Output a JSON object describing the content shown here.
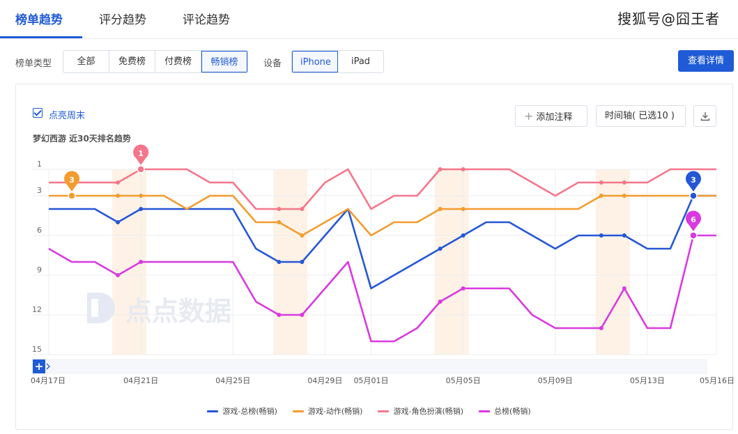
{
  "tabs": [
    {
      "label": "榜单趋势",
      "active": true
    },
    {
      "label": "评分趋势",
      "active": false
    },
    {
      "label": "评论趋势",
      "active": false
    }
  ],
  "watermark": "搜狐号@囧王者",
  "filters": {
    "chart_type_label": "榜单类型",
    "chart_types": [
      {
        "label": "全部",
        "selected": false
      },
      {
        "label": "免费榜",
        "selected": false
      },
      {
        "label": "付费榜",
        "selected": false
      },
      {
        "label": "畅销榜",
        "selected": true
      }
    ],
    "device_label": "设备",
    "devices": [
      {
        "label": "iPhone",
        "selected": true
      },
      {
        "label": "iPad",
        "selected": false
      }
    ],
    "detail_button": "查看详情"
  },
  "toolbar": {
    "weekend_label": "点亮周末",
    "weekend_checked": true,
    "add_note": "添加注释",
    "timeline": "时间轴( 已选10 )"
  },
  "chart_watermark": "点点数据",
  "chart_data": {
    "type": "line",
    "title": "梦幻西游 近30天排名趋势",
    "y_inverted": true,
    "ylim": [
      1,
      15
    ],
    "yticks": [
      1,
      3,
      6,
      9,
      12,
      15
    ],
    "x": [
      "04月17日",
      "04月18日",
      "04月19日",
      "04月20日",
      "04月21日",
      "04月22日",
      "04月23日",
      "04月24日",
      "04月25日",
      "04月26日",
      "04月27日",
      "04月28日",
      "04月29日",
      "04月30日",
      "05月01日",
      "05月02日",
      "05月03日",
      "05月04日",
      "05月05日",
      "05月06日",
      "05月07日",
      "05月08日",
      "05月09日",
      "05月10日",
      "05月11日",
      "05月12日",
      "05月13日",
      "05月14日",
      "05月15日",
      "05月16日"
    ],
    "xtick_labels": [
      "04月17日",
      "04月21日",
      "04月25日",
      "04月29日",
      "05月01日",
      "05月05日",
      "05月09日",
      "05月13日",
      "05月16日"
    ],
    "weekend_bands": [
      [
        "04月20日",
        "04月21日"
      ],
      [
        "04月27日",
        "04月28日"
      ],
      [
        "05月04日",
        "05月05日"
      ],
      [
        "05月11日",
        "05月12日"
      ]
    ],
    "grid": true,
    "legend_position": "bottom-center",
    "series": [
      {
        "name": "游戏-总榜(畅销)",
        "color": "#2456d6",
        "values": [
          4,
          4,
          4,
          5,
          4,
          4,
          4,
          4,
          4,
          7,
          8,
          8,
          6,
          4,
          10,
          9,
          8,
          7,
          6,
          5,
          5,
          6,
          7,
          6,
          6,
          6,
          7,
          7,
          3,
          3
        ],
        "marker": {
          "index": 28,
          "label": "3"
        }
      },
      {
        "name": "游戏-动作(畅销)",
        "color": "#f39c2f",
        "values": [
          3,
          3,
          3,
          3,
          3,
          3,
          4,
          3,
          3,
          5,
          5,
          6,
          5,
          4,
          6,
          5,
          5,
          4,
          4,
          4,
          4,
          4,
          4,
          4,
          3,
          3,
          3,
          3,
          3,
          3
        ],
        "marker": {
          "index": 1,
          "label": "3"
        }
      },
      {
        "name": "游戏-角色扮演(畅销)",
        "color": "#f5768a",
        "values": [
          2,
          2,
          2,
          2,
          1,
          1,
          1,
          2,
          2,
          4,
          4,
          4,
          2,
          1,
          4,
          3,
          3,
          1,
          1,
          1,
          1,
          2,
          3,
          2,
          2,
          2,
          2,
          1,
          1,
          1
        ],
        "marker": {
          "index": 4,
          "label": "1"
        }
      },
      {
        "name": "总榜(畅销)",
        "color": "#d939e0",
        "values": [
          7,
          8,
          8,
          9,
          8,
          8,
          8,
          8,
          8,
          11,
          12,
          12,
          10,
          8,
          14,
          14,
          13,
          11,
          10,
          10,
          10,
          12,
          13,
          13,
          13,
          10,
          13,
          13,
          6,
          6
        ],
        "marker": {
          "index": 28,
          "label": "6"
        }
      }
    ]
  }
}
